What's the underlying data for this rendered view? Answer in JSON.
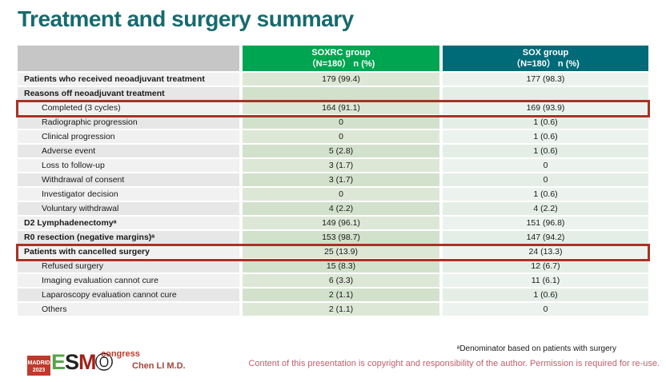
{
  "title": "Treatment and surgery summary",
  "table": {
    "columns": [
      {
        "name": "",
        "sub": ""
      },
      {
        "name": "SOXRC group",
        "sub": "（N=180） n (%)"
      },
      {
        "name": "SOX group",
        "sub": "（N=180） n (%)"
      }
    ],
    "rows": [
      {
        "label": "Patients who received neoadjuvant treatment",
        "bold": true,
        "indent": false,
        "highlight": false,
        "soxrc": "179 (99.4)",
        "sox": "177 (98.3)"
      },
      {
        "label": "Reasons off neoadjuvant treatment",
        "bold": true,
        "indent": false,
        "highlight": false,
        "soxrc": "",
        "sox": ""
      },
      {
        "label": "Completed (3 cycles)",
        "bold": false,
        "indent": true,
        "highlight": true,
        "soxrc": "164 (91.1)",
        "sox": "169 (93.9)"
      },
      {
        "label": "Radiographic progression",
        "bold": false,
        "indent": true,
        "highlight": false,
        "soxrc": "0",
        "sox": "1 (0.6)"
      },
      {
        "label": "Clinical progression",
        "bold": false,
        "indent": true,
        "highlight": false,
        "soxrc": "0",
        "sox": "1 (0.6)"
      },
      {
        "label": "Adverse event",
        "bold": false,
        "indent": true,
        "highlight": false,
        "soxrc": "5 (2.8)",
        "sox": "1 (0.6)"
      },
      {
        "label": "Loss to follow-up",
        "bold": false,
        "indent": true,
        "highlight": false,
        "soxrc": "3 (1.7)",
        "sox": "0"
      },
      {
        "label": "Withdrawal of consent",
        "bold": false,
        "indent": true,
        "highlight": false,
        "soxrc": "3 (1.7)",
        "sox": "0"
      },
      {
        "label": "Investigator decision",
        "bold": false,
        "indent": true,
        "highlight": false,
        "soxrc": "0",
        "sox": "1 (0.6)"
      },
      {
        "label": "Voluntary withdrawal",
        "bold": false,
        "indent": true,
        "highlight": false,
        "soxrc": "4 (2.2)",
        "sox": "4 (2.2)"
      },
      {
        "label": "D2 Lymphadenectomyᵃ",
        "bold": true,
        "indent": false,
        "highlight": false,
        "soxrc": "149 (96.1)",
        "sox": "151 (96.8)"
      },
      {
        "label": "R0 resection (negative margins)ᵃ",
        "bold": true,
        "indent": false,
        "highlight": false,
        "soxrc": "153 (98.7)",
        "sox": "147 (94.2)"
      },
      {
        "label": "Patients with cancelled surgery",
        "bold": true,
        "indent": false,
        "highlight": true,
        "soxrc": "25 (13.9)",
        "sox": "24 (13.3)"
      },
      {
        "label": "Refused surgery",
        "bold": false,
        "indent": true,
        "highlight": false,
        "soxrc": "15 (8.3)",
        "sox": "12 (6.7)"
      },
      {
        "label": "Imaging evaluation cannot cure",
        "bold": false,
        "indent": true,
        "highlight": false,
        "soxrc": "6 (3.3)",
        "sox": "11 (6.1)"
      },
      {
        "label": "Laparoscopy evaluation cannot cure",
        "bold": false,
        "indent": true,
        "highlight": false,
        "soxrc": "2 (1.1)",
        "sox": "1 (0.6)"
      },
      {
        "label": "Others",
        "bold": false,
        "indent": true,
        "highlight": false,
        "soxrc": "2 (1.1)",
        "sox": "0"
      }
    ]
  },
  "footer": {
    "logo": {
      "city": "MADRID",
      "year": "2023",
      "e": "E",
      "s": "S",
      "m": "M",
      "o": "O",
      "congress": "congress"
    },
    "author": "Chen LI M.D.",
    "footnote": "ᵃDenominator based on patients with surgery",
    "copyright": "Content of this presentation is copyright and responsibility of the author.  Permission is required for re-use."
  },
  "colors": {
    "title_teal": "#176a6e",
    "header_green": "#00a551",
    "header_teal": "#006b78",
    "header_grey": "#c6c6c6",
    "highlight_red": "#a93226",
    "author_red": "#a3453c",
    "copyright_rose": "#c05f6c"
  }
}
